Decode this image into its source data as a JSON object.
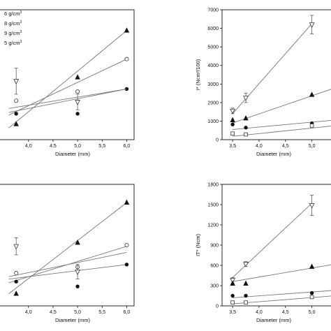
{
  "chart_data": [
    {
      "type": "scatter",
      "panel": "top-left",
      "xlabel": "Diameter (mm)",
      "ylabel": "",
      "xlim": [
        3.25,
        6.15
      ],
      "ylim": [
        0,
        100
      ],
      "xticks": [
        "4,0",
        "4,5",
        "5,0",
        "5,5",
        "6,0"
      ],
      "yticks": [],
      "legend": {
        "placement": "top-left",
        "entries": [
          {
            "label": "6 g/cm",
            "sup": "3",
            "marker": "triangle-up"
          },
          {
            "label": "8 g/cm",
            "sup": "3",
            "marker": "circle-open"
          },
          {
            "label": "9 g/cm",
            "sup": "3",
            "marker": "circle-filled"
          },
          {
            "label": "5 g/cm",
            "sup": "3",
            "marker": "triangle-down-open"
          }
        ]
      },
      "series": [
        {
          "marker": "triangle-up",
          "points": [
            [
              3.75,
              12
            ],
            [
              5.0,
              48
            ],
            [
              6.0,
              84
            ]
          ],
          "fit": [
            [
              3.6,
              9
            ],
            [
              6.0,
              84
            ]
          ]
        },
        {
          "marker": "circle-open",
          "points": [
            [
              3.75,
              30
            ],
            [
              5.0,
              37
            ],
            [
              6.0,
              62
            ]
          ],
          "fit": [
            [
              3.6,
              19
            ],
            [
              6.0,
              62
            ]
          ]
        },
        {
          "marker": "circle-filled",
          "points": [
            [
              3.75,
              20
            ],
            [
              5.0,
              20
            ],
            [
              6.0,
              39
            ]
          ],
          "fit": [
            [
              3.6,
              21
            ],
            [
              6.0,
              39
            ]
          ]
        },
        {
          "marker": "triangle-down-open",
          "points": [
            [
              3.75,
              45
            ],
            [
              5.0,
              29
            ]
          ],
          "error": [
            10,
            6
          ],
          "fit": [
            [
              3.6,
              24
            ],
            [
              6.0,
              39
            ]
          ]
        }
      ]
    },
    {
      "type": "scatter",
      "panel": "top-right",
      "xlabel": "Diameter (mm)",
      "ylabel": "I* (Ncm²/100)",
      "xlim": [
        3.3,
        5.6
      ],
      "ylim": [
        0,
        7000
      ],
      "xticks": [
        "3,5",
        "4,0",
        "4,5",
        "5,0"
      ],
      "yticks": [
        "0",
        "1000",
        "2000",
        "3000",
        "4000",
        "5000",
        "6000",
        "7000"
      ],
      "series": [
        {
          "marker": "triangle-down-open",
          "points": [
            [
              3.5,
              1550
            ],
            [
              3.75,
              2250
            ],
            [
              5.0,
              6200
            ]
          ],
          "error": [
            150,
            250,
            500
          ],
          "fit": [
            [
              3.5,
              1400
            ],
            [
              5.0,
              6250
            ]
          ]
        },
        {
          "marker": "triangle-up",
          "points": [
            [
              3.5,
              1050
            ],
            [
              3.75,
              1150
            ],
            [
              5.0,
              2420
            ]
          ],
          "fit": [
            [
              3.5,
              900
            ],
            [
              5.6,
              2950
            ]
          ]
        },
        {
          "marker": "circle-filled",
          "points": [
            [
              3.5,
              820
            ],
            [
              3.75,
              650
            ],
            [
              5.0,
              880
            ]
          ],
          "fit": [
            [
              3.5,
              550
            ],
            [
              5.6,
              1100
            ]
          ]
        },
        {
          "marker": "square-open",
          "points": [
            [
              3.5,
              330
            ],
            [
              3.75,
              280
            ],
            [
              5.0,
              760
            ]
          ],
          "fit": [
            [
              3.5,
              180
            ],
            [
              5.6,
              800
            ]
          ]
        }
      ]
    },
    {
      "type": "scatter",
      "panel": "bottom-left",
      "xlabel": "Diameter (mm)",
      "ylabel": "",
      "xlim": [
        3.25,
        6.15
      ],
      "ylim": [
        0,
        100
      ],
      "xticks": [
        "4,0",
        "4,5",
        "5,0",
        "5,5",
        "6,0"
      ],
      "yticks": [],
      "series": [
        {
          "marker": "triangle-up",
          "points": [
            [
              3.75,
              10
            ],
            [
              5.0,
              52
            ],
            [
              6.0,
              85
            ]
          ],
          "fit": [
            [
              3.6,
              10
            ],
            [
              6.0,
              85
            ]
          ]
        },
        {
          "marker": "circle-open",
          "points": [
            [
              3.75,
              27
            ],
            [
              5.0,
              32
            ],
            [
              6.0,
              50
            ]
          ],
          "fit": [
            [
              3.6,
              19
            ],
            [
              6.0,
              49
            ]
          ]
        },
        {
          "marker": "circle-filled",
          "points": [
            [
              3.75,
              20
            ],
            [
              5.0,
              16
            ],
            [
              6.0,
              34
            ]
          ],
          "fit": [
            [
              3.6,
              22
            ],
            [
              6.0,
              34
            ]
          ]
        },
        {
          "marker": "triangle-down-open",
          "points": [
            [
              3.75,
              49
            ],
            [
              5.0,
              28
            ]
          ],
          "error": [
            7,
            6
          ],
          "fit": [
            [
              3.6,
              24
            ],
            [
              6.0,
              44
            ]
          ]
        }
      ]
    },
    {
      "type": "scatter",
      "panel": "bottom-right",
      "xlabel": "Diameter (mm)",
      "ylabel": "IT* (Ncm)",
      "xlim": [
        3.3,
        5.6
      ],
      "ylim": [
        0,
        1800
      ],
      "xticks": [
        "3,5",
        "4,0",
        "4,5",
        "5,0"
      ],
      "yticks": [
        "0",
        "300",
        "600",
        "900",
        "1200",
        "1500",
        "1800"
      ],
      "series": [
        {
          "marker": "triangle-down-open",
          "points": [
            [
              3.5,
              380
            ],
            [
              3.75,
              620
            ],
            [
              5.0,
              1490
            ]
          ],
          "error": [
            40,
            35,
            150
          ],
          "fit": [
            [
              3.5,
              420
            ],
            [
              5.0,
              1520
            ]
          ]
        },
        {
          "marker": "triangle-up",
          "points": [
            [
              3.5,
              330
            ],
            [
              3.75,
              330
            ],
            [
              5.0,
              580
            ]
          ],
          "fit": [
            [
              3.5,
              360
            ],
            [
              5.6,
              640
            ]
          ]
        },
        {
          "marker": "circle-filled",
          "points": [
            [
              3.5,
              150
            ],
            [
              3.75,
              150
            ],
            [
              5.0,
              190
            ]
          ],
          "fit": [
            [
              3.5,
              120
            ],
            [
              5.6,
              240
            ]
          ]
        },
        {
          "marker": "square-open",
          "points": [
            [
              3.5,
              50
            ],
            [
              3.75,
              50
            ],
            [
              5.0,
              130
            ]
          ],
          "fit": [
            [
              3.5,
              30
            ],
            [
              5.6,
              160
            ]
          ]
        }
      ]
    }
  ]
}
